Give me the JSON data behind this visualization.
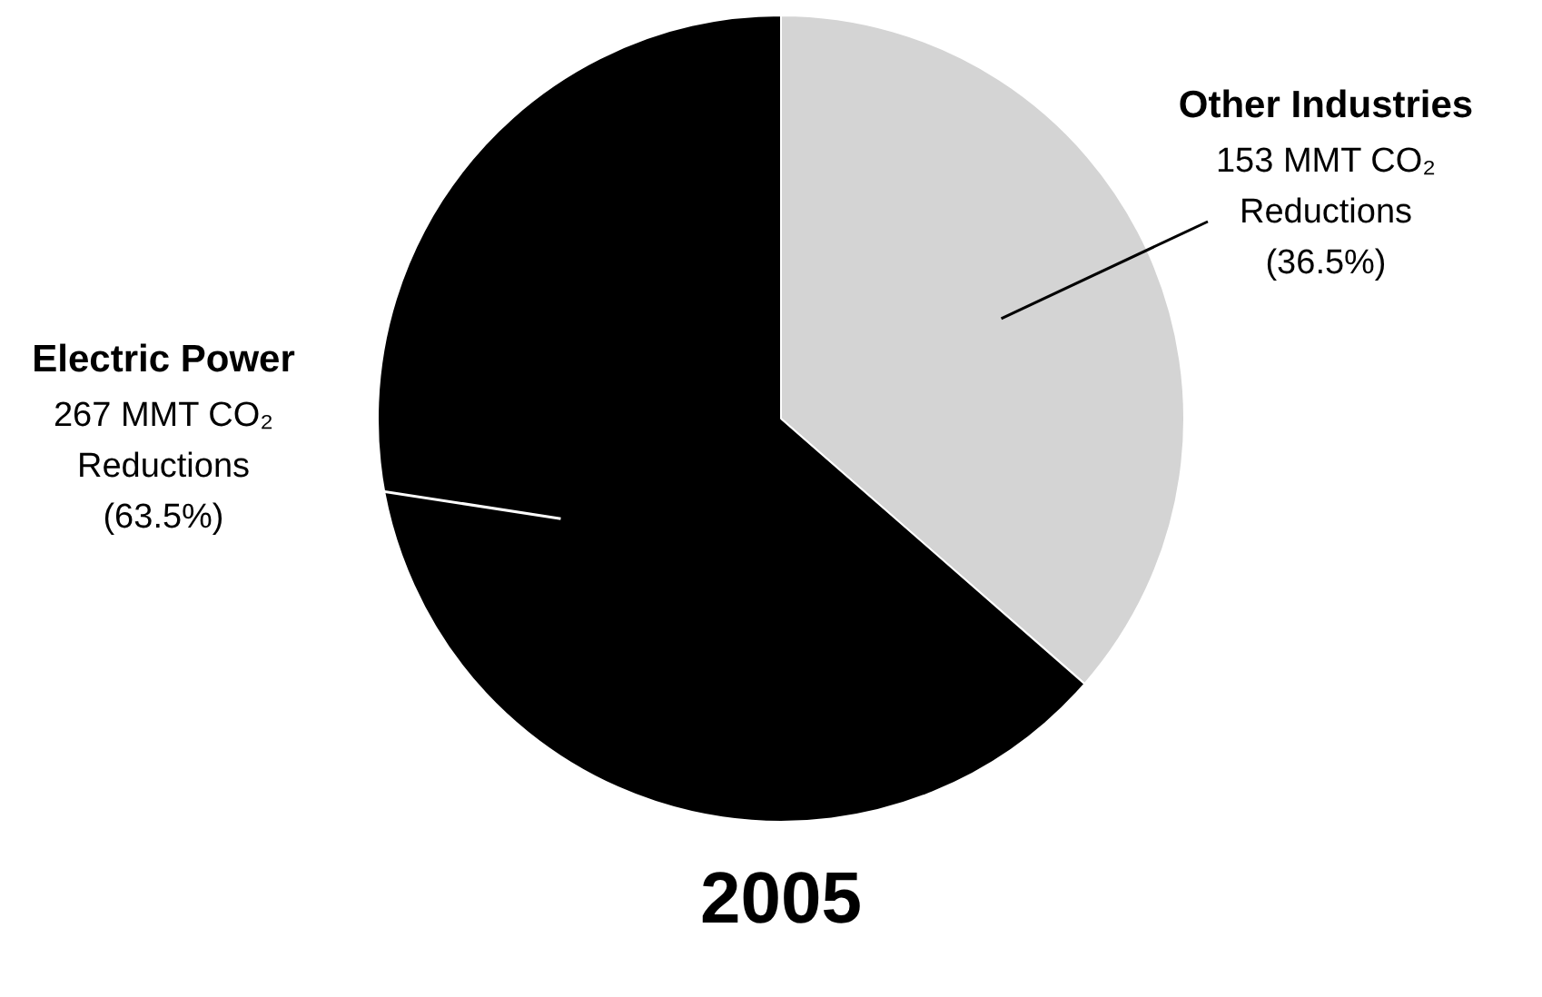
{
  "chart_data": {
    "type": "pie",
    "title": "2005",
    "categories": [
      "Other Industries",
      "Electric Power"
    ],
    "values": [
      153,
      267
    ],
    "colors": [
      "#d4d4d4",
      "#000000"
    ],
    "value_labels": [
      "153 MMT CO₂\nReductions\n(36.5%)",
      "267 MMT CO₂\nReductions\n(63.5%)"
    ],
    "legend": false
  }
}
